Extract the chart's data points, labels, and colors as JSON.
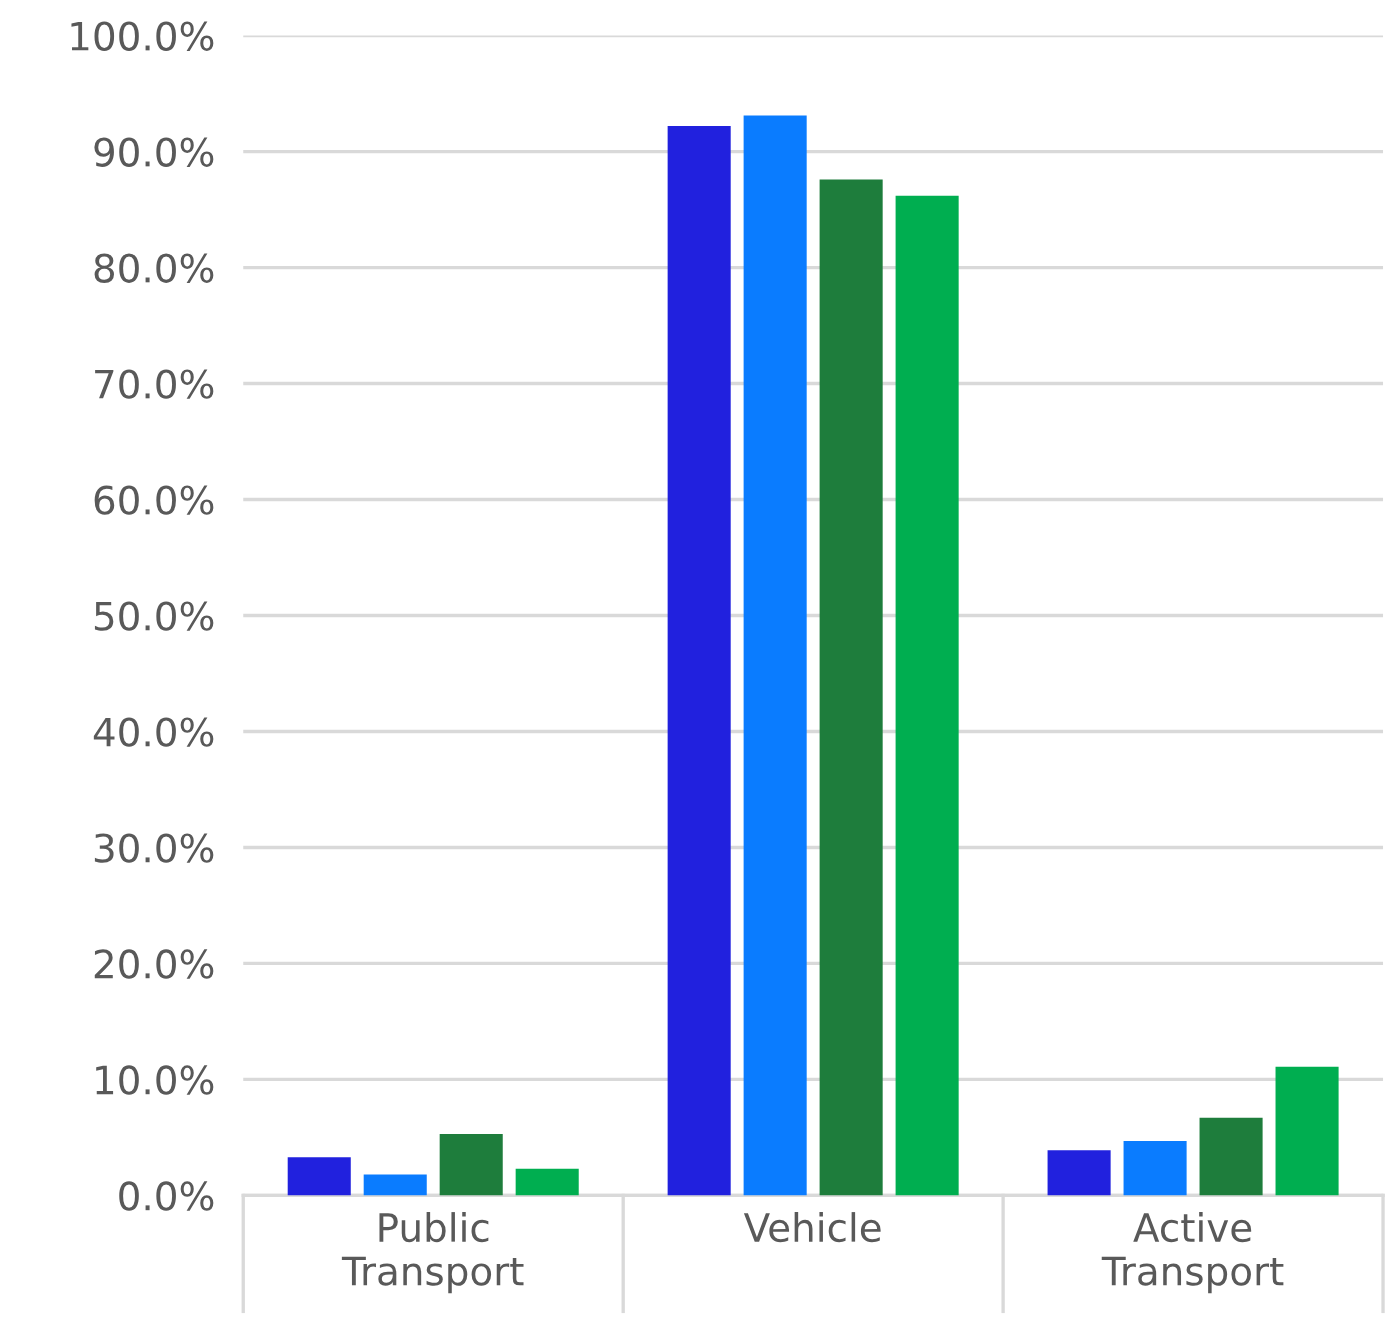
{
  "chart_data": {
    "type": "bar",
    "categories": [
      "Public\nTransport",
      "Vehicle",
      "Active\nTransport"
    ],
    "series": [
      {
        "color": "#2121de",
        "values": [
          3.3,
          92.2,
          3.9
        ]
      },
      {
        "color": "#0a7cff",
        "values": [
          1.8,
          93.1,
          4.7
        ]
      },
      {
        "color": "#1e7d3c",
        "values": [
          5.3,
          87.6,
          6.7
        ]
      },
      {
        "color": "#00ae50",
        "values": [
          2.3,
          86.2,
          11.1
        ]
      }
    ],
    "ylim": [
      0,
      100
    ],
    "yticks": [
      {
        "value": 0,
        "label": "0.0%"
      },
      {
        "value": 10,
        "label": "10.0%"
      },
      {
        "value": 20,
        "label": "20.0%"
      },
      {
        "value": 30,
        "label": "30.0%"
      },
      {
        "value": 40,
        "label": "40.0%"
      },
      {
        "value": 50,
        "label": "50.0%"
      },
      {
        "value": 60,
        "label": "60.0%"
      },
      {
        "value": 70,
        "label": "70.0%"
      },
      {
        "value": 80,
        "label": "80.0%"
      },
      {
        "value": 90,
        "label": "90.0%"
      },
      {
        "value": 100,
        "label": "100.0%"
      }
    ],
    "grid": "y",
    "legend": false
  }
}
